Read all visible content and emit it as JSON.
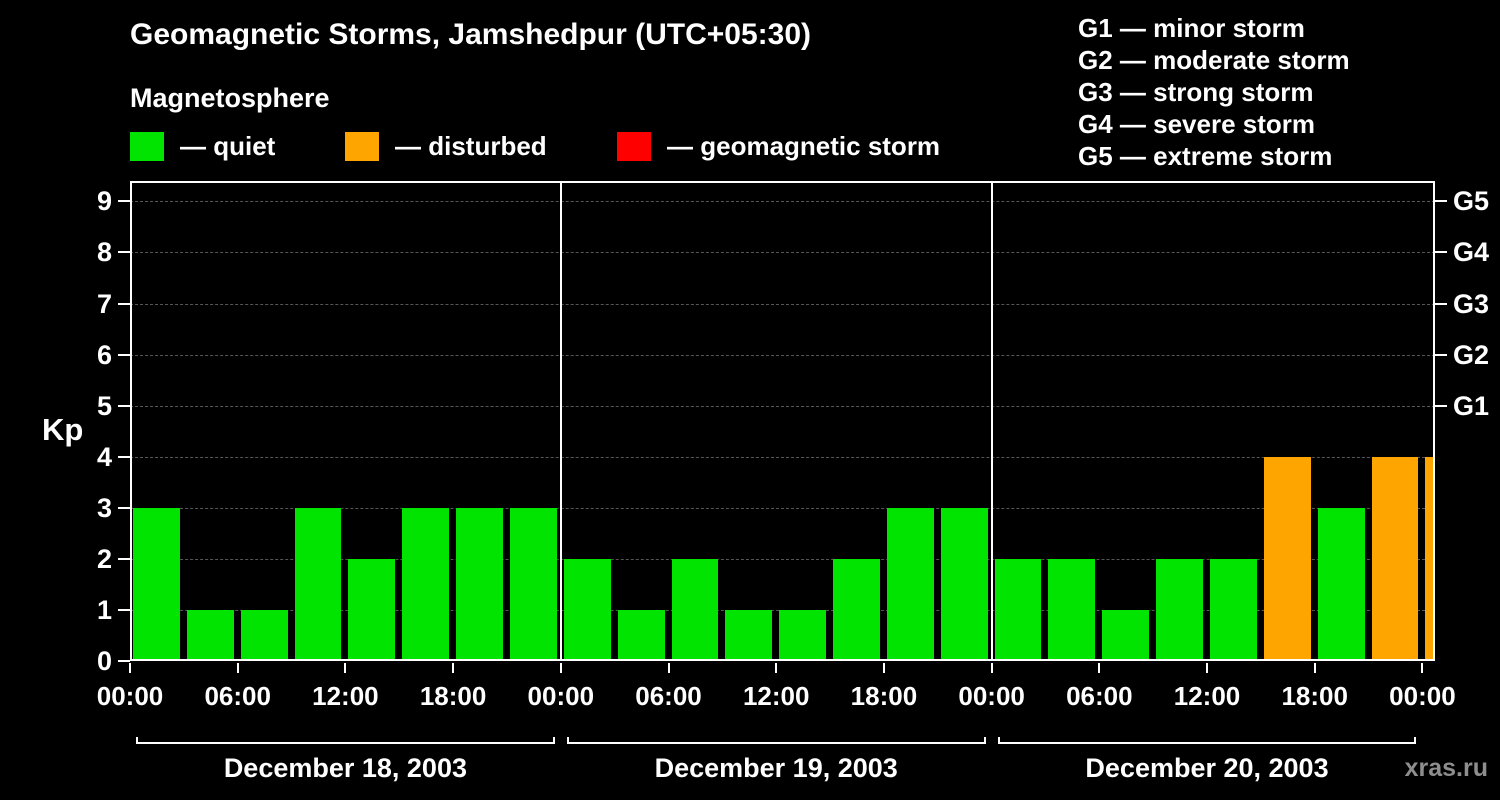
{
  "header": {
    "title": "Geomagnetic Storms, Jamshedpur (UTC+05:30)",
    "subtitle": "Magnetosphere"
  },
  "legend": {
    "items": [
      {
        "key": "quiet",
        "label": "— quiet",
        "color": "#00e400"
      },
      {
        "key": "disturbed",
        "label": "— disturbed",
        "color": "#ffa500"
      },
      {
        "key": "storm",
        "label": "— geomagnetic storm",
        "color": "#ff0000"
      }
    ]
  },
  "storm_scale": {
    "items": [
      {
        "label": "G1 — minor storm"
      },
      {
        "label": "G2 — moderate storm"
      },
      {
        "label": "G3 — strong storm"
      },
      {
        "label": "G4 — severe storm"
      },
      {
        "label": "G5 — extreme storm"
      }
    ]
  },
  "watermark": "xras.ru",
  "chart_data": {
    "type": "bar",
    "title": "Geomagnetic Storms, Jamshedpur (UTC+05:30)",
    "subtitle": "Magnetosphere",
    "ylabel": "Kp",
    "xlabel": "",
    "ylim": [
      0,
      9.4
    ],
    "yticks": [
      0,
      1,
      2,
      3,
      4,
      5,
      6,
      7,
      8,
      9
    ],
    "grid": "dashed-horizontal",
    "right_axis_ticks": [
      {
        "label": "G1",
        "kp": 5
      },
      {
        "label": "G2",
        "kp": 6
      },
      {
        "label": "G3",
        "kp": 7
      },
      {
        "label": "G4",
        "kp": 8
      },
      {
        "label": "G5",
        "kp": 9
      }
    ],
    "hours_per_bar": 3,
    "x_tick_hours": [
      0,
      6,
      12,
      18
    ],
    "x_tick_labels": [
      "00:00",
      "06:00",
      "12:00",
      "18:00"
    ],
    "final_tick_label": "00:00",
    "status_colors": {
      "quiet": "#00e400",
      "disturbed": "#ffa500",
      "storm": "#ff0000"
    },
    "days": [
      {
        "date": "December 18, 2003",
        "kp_values": [
          3,
          1,
          1,
          3,
          2,
          3,
          3,
          3
        ],
        "status": [
          "quiet",
          "quiet",
          "quiet",
          "quiet",
          "quiet",
          "quiet",
          "quiet",
          "quiet"
        ]
      },
      {
        "date": "December 19, 2003",
        "kp_values": [
          2,
          1,
          2,
          1,
          1,
          2,
          3,
          3
        ],
        "status": [
          "quiet",
          "quiet",
          "quiet",
          "quiet",
          "quiet",
          "quiet",
          "quiet",
          "quiet"
        ]
      },
      {
        "date": "December 20, 2003",
        "kp_values": [
          2,
          2,
          1,
          2,
          2,
          4,
          3,
          4
        ],
        "status": [
          "quiet",
          "quiet",
          "quiet",
          "quiet",
          "quiet",
          "disturbed",
          "quiet",
          "disturbed"
        ]
      }
    ],
    "partial_next_bar": {
      "kp": 4,
      "status": "disturbed"
    }
  }
}
